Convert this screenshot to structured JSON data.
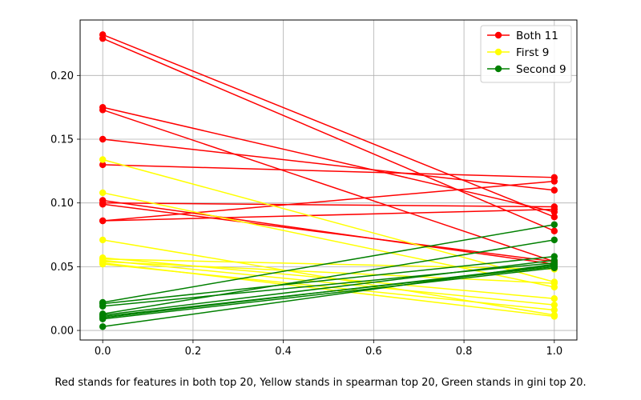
{
  "chart_data": {
    "type": "line",
    "title": "",
    "xlabel": "",
    "ylabel": "",
    "xlim": [
      -0.05,
      1.05
    ],
    "ylim": [
      -0.0075,
      0.2435
    ],
    "xticks": [
      0.0,
      0.2,
      0.4,
      0.6,
      0.8,
      1.0
    ],
    "xtick_labels": [
      "0.0",
      "0.2",
      "0.4",
      "0.6",
      "0.8",
      "1.0"
    ],
    "yticks": [
      0.0,
      0.05,
      0.1,
      0.15,
      0.2
    ],
    "ytick_labels": [
      "0.00",
      "0.05",
      "0.10",
      "0.15",
      "0.20"
    ],
    "grid": true,
    "legend_position": "top-right",
    "x": [
      0,
      1
    ],
    "series": [
      {
        "name": "Both 11",
        "color": "#ff0000",
        "lines": [
          [
            0.232,
            0.089
          ],
          [
            0.229,
            0.078
          ],
          [
            0.175,
            0.093
          ],
          [
            0.173,
            0.054
          ],
          [
            0.15,
            0.11
          ],
          [
            0.13,
            0.12
          ],
          [
            0.102,
            0.052
          ],
          [
            0.1,
            0.097
          ],
          [
            0.099,
            0.054
          ],
          [
            0.086,
            0.117
          ],
          [
            0.086,
            0.095
          ]
        ]
      },
      {
        "name": "First 9",
        "color": "#ffff00",
        "lines": [
          [
            0.134,
            0.038
          ],
          [
            0.108,
            0.034
          ],
          [
            0.071,
            0.012
          ],
          [
            0.057,
            0.025
          ],
          [
            0.056,
            0.048
          ],
          [
            0.055,
            0.02
          ],
          [
            0.054,
            0.037
          ],
          [
            0.053,
            0.011
          ],
          [
            0.052,
            0.016
          ]
        ]
      },
      {
        "name": "Second 9",
        "color": "#008000",
        "lines": [
          [
            0.022,
            0.083
          ],
          [
            0.021,
            0.058
          ],
          [
            0.019,
            0.053
          ],
          [
            0.013,
            0.071
          ],
          [
            0.012,
            0.055
          ],
          [
            0.011,
            0.05
          ],
          [
            0.01,
            0.051
          ],
          [
            0.009,
            0.049
          ],
          [
            0.003,
            0.052
          ]
        ]
      }
    ]
  },
  "caption": "Red stands for features in both top 20, Yellow stands in spearman top 20, Green stands in gini top 20."
}
